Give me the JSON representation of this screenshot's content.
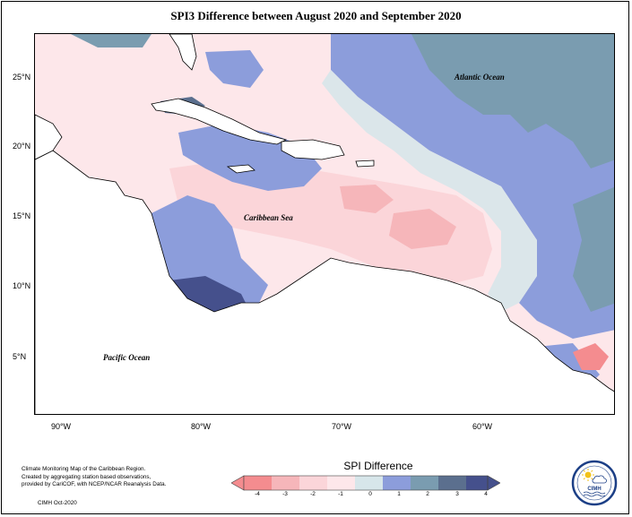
{
  "title": "SPI3 Difference between August 2020 and September 2020",
  "y_axis_ticks": [
    "25°N",
    "20°N",
    "15°N",
    "10°N",
    "5°N"
  ],
  "x_axis_ticks": [
    "90°W",
    "80°W",
    "70°W",
    "60°W"
  ],
  "labels": {
    "atlantic": "Atlantic Ocean",
    "caribbean": "Caribbean Sea",
    "pacific": "Pacific Ocean"
  },
  "credits": {
    "line1": "Climate Monitoring Map of the Caribbean Region.",
    "line2": "Created by aggregating station based observations,",
    "line3": "provided by CariCOF, with NCEP/NCAR Reanalysis Data.",
    "date": "CIMH Oct-2020"
  },
  "legend": {
    "title": "SPI Difference",
    "ticks": [
      "-4",
      "-3",
      "-2",
      "-1",
      "0",
      "1",
      "2",
      "3",
      "4"
    ],
    "colors": [
      "#f48c8f",
      "#f6b6ba",
      "#fbd5d9",
      "#fde7ea",
      "#d7e6ea",
      "#8c9ddb",
      "#7a9cb0",
      "#5b6f8e",
      "#45508c"
    ]
  },
  "logo": {
    "text": "CIMH",
    "ring_color": "#1c3f86",
    "sun_color": "#f2c21b"
  },
  "colors": {
    "land": "#ffffff",
    "neutral": "#d7e6ea",
    "pink": "#fbd5d9",
    "deep_pink": "#f6b6ba",
    "red": "#f48c8f",
    "blue": "#8c9ddb",
    "steel": "#7a9cb0",
    "navy": "#45508c"
  }
}
